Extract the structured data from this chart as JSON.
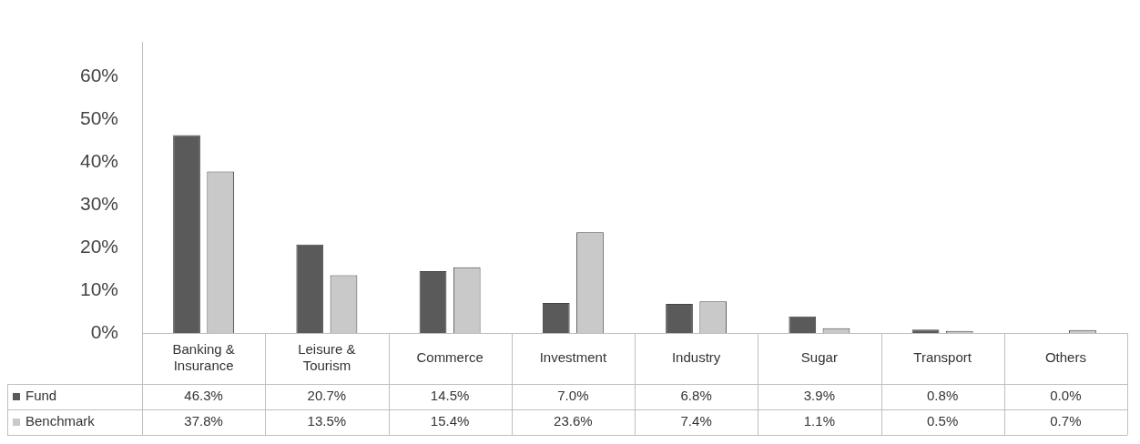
{
  "chart_data": {
    "type": "bar",
    "categories": [
      "Banking & Insurance",
      "Leisure & Tourism",
      "Commerce",
      "Investment",
      "Industry",
      "Sugar",
      "Transport",
      "Others"
    ],
    "series": [
      {
        "name": "Fund",
        "color": "#5a5a5a",
        "values": [
          46.3,
          20.7,
          14.5,
          7.0,
          6.8,
          3.9,
          0.8,
          0.0
        ],
        "value_labels": [
          "46.3%",
          "20.7%",
          "14.5%",
          "7.0%",
          "6.8%",
          "3.9%",
          "0.8%",
          "0.0%"
        ]
      },
      {
        "name": "Benchmark",
        "color": "#c9c9c9",
        "values": [
          37.8,
          13.5,
          15.4,
          23.6,
          7.4,
          1.1,
          0.5,
          0.7
        ],
        "value_labels": [
          "37.8%",
          "13.5%",
          "15.4%",
          "23.6%",
          "7.4%",
          "1.1%",
          "0.5%",
          "0.7%"
        ]
      }
    ],
    "ylim": [
      0,
      68
    ],
    "yticks": [
      {
        "value": 0,
        "label": "0%"
      },
      {
        "value": 10,
        "label": "10%"
      },
      {
        "value": 20,
        "label": "20%"
      },
      {
        "value": 30,
        "label": "30%"
      },
      {
        "value": 40,
        "label": "40%"
      },
      {
        "value": 50,
        "label": "50%"
      },
      {
        "value": 60,
        "label": "60%"
      }
    ],
    "grid": false,
    "legend": "bottom"
  }
}
